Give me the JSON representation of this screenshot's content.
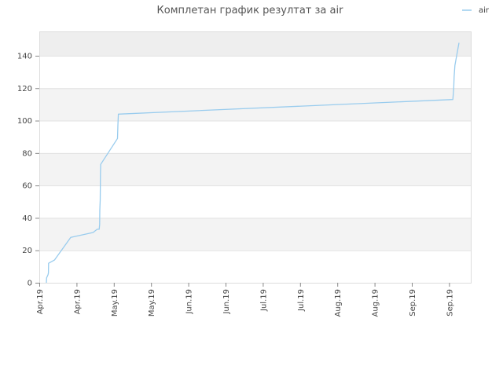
{
  "chart_data": {
    "type": "line",
    "title": "Комплетан график резултат за air",
    "xlabel": "",
    "ylabel": "",
    "ylim": [
      0,
      155
    ],
    "y_ticks": [
      0,
      20,
      40,
      60,
      80,
      100,
      120,
      140
    ],
    "x_tick_labels": [
      "Apr.19",
      "Apr.19",
      "May.19",
      "May.19",
      "Jun.19",
      "Jun.19",
      "Jul.19",
      "Jul.19",
      "Aug.19",
      "Aug.19",
      "Sep.19",
      "Sep.19"
    ],
    "grid": true,
    "banded_background": true,
    "legend_position": "top-right",
    "series": [
      {
        "name": "air",
        "color": "#99ccee",
        "x": [
          0,
          0.1,
          0.8,
          1,
          1.1,
          4,
          12,
          23,
          24,
          25,
          26,
          26.2,
          26.3,
          26.5,
          26.6,
          26.7,
          35,
          35.2,
          35.4,
          200,
          200.4,
          200.6,
          201,
          202,
          203
        ],
        "y": [
          0,
          3,
          5,
          6,
          12,
          14,
          28,
          31,
          32,
          33,
          33,
          36,
          45,
          51,
          67,
          73,
          89,
          97,
          104,
          113,
          120,
          127,
          134,
          141,
          148
        ]
      }
    ]
  }
}
